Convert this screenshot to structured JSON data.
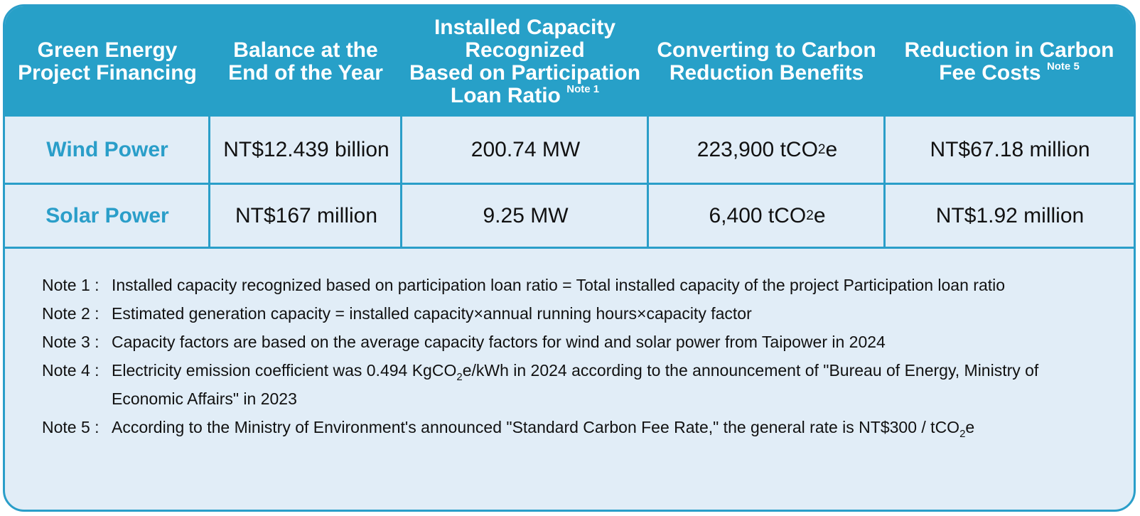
{
  "table": {
    "headers": [
      {
        "lines": [
          "Green Energy",
          "Project Financing"
        ],
        "note": ""
      },
      {
        "lines": [
          "Balance at the",
          "End of the Year"
        ],
        "note": ""
      },
      {
        "lines": [
          "Installed Capacity",
          "Recognized",
          "Based on Participation",
          "Loan Ratio"
        ],
        "note": "Note 1"
      },
      {
        "lines": [
          "Converting to Carbon",
          "Reduction Benefits"
        ],
        "note": ""
      },
      {
        "lines": [
          "Reduction in Carbon",
          "Fee Costs"
        ],
        "note": "Note 5"
      }
    ],
    "rows": [
      {
        "category": "Wind Power",
        "balance": "NT$12.439 billion",
        "capacity": "200.74 MW",
        "carbon": {
          "value": "223,900 tCO",
          "sub": "2",
          "suffix": "e"
        },
        "fee": "NT$67.18 million"
      },
      {
        "category": "Solar Power",
        "balance": "NT$167 million",
        "capacity": "9.25 MW",
        "carbon": {
          "value": "6,400 tCO",
          "sub": "2",
          "suffix": "e"
        },
        "fee": "NT$1.92 million"
      }
    ]
  },
  "notes": [
    {
      "label": "Note 1 :",
      "text": "Installed capacity recognized based on participation loan ratio = Total installed capacity of the project Participation loan ratio"
    },
    {
      "label": "Note 2 :",
      "text": "Estimated generation capacity = installed capacity×annual running hours×capacity factor"
    },
    {
      "label": "Note 3 :",
      "text": "Capacity factors are based on the average capacity factors for wind and solar power from Taipower in 2024"
    },
    {
      "label": "Note 4 :",
      "text_a": "Electricity emission coefficient was 0.494 KgCO",
      "sub": "2",
      "text_b": "e/kWh in 2024 according to the announcement of \"Bureau of Energy, Ministry of Economic Affairs\" in 2023"
    },
    {
      "label": "Note 5 :",
      "text_a": "According to the Ministry of Environment's announced \"Standard Carbon Fee Rate,\" the general rate is NT$300 / tCO",
      "sub": "2",
      "text_b": "e"
    }
  ]
}
